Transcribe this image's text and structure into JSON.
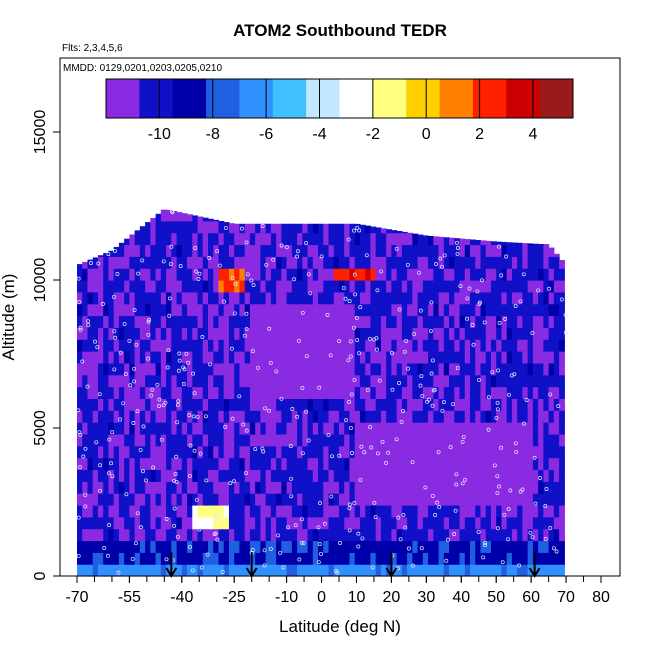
{
  "chart_data": {
    "type": "heatmap",
    "title": "ATOM2 Southbound TEDR",
    "note_flights": "Flts: 2,3,4,5,6",
    "note_dates": "MMDD: 0129,0201,0203,0205,0210",
    "xlabel": "Latitude (deg N)",
    "ylabel": "Altitude (m)",
    "xlim": [
      -70,
      80
    ],
    "ylim": [
      0,
      17500
    ],
    "x_ticks": [
      -70,
      -55,
      -40,
      -25,
      -10,
      0,
      10,
      20,
      30,
      40,
      50,
      60,
      70,
      80
    ],
    "x_tick_labels": [
      "-70",
      "-55",
      "-40",
      "-25",
      "-10",
      "0",
      "10",
      "20",
      "30",
      "40",
      "50",
      "60",
      "70",
      "80"
    ],
    "y_ticks": [
      0,
      5000,
      10000,
      15000
    ],
    "y_tick_labels": [
      "0",
      "5000",
      "10000",
      "15000"
    ],
    "colorbar": {
      "range": [
        -12,
        5.5
      ],
      "ticks": [
        -10,
        -8,
        -6,
        -4,
        -2,
        0,
        2,
        4
      ],
      "tick_labels": [
        "-10",
        "-8",
        "-6",
        "-4",
        "-2",
        "0",
        "2",
        "4"
      ],
      "colors": [
        "#8a2be2",
        "#1010c8",
        "#0000aa",
        "#2060e0",
        "#3090ff",
        "#40c0ff",
        "#c0e8ff",
        "#ffffff",
        "#ffff80",
        "#ffd000",
        "#ff8000",
        "#ff2000",
        "#cc0000",
        "#9a1a1a"
      ]
    },
    "background_value": -10.5,
    "features": [
      {
        "name": "low-altitude band",
        "lat_range": [
          -70,
          70
        ],
        "alt_range": [
          0,
          600
        ],
        "value": -6.5
      },
      {
        "name": "boundary layer",
        "lat_range": [
          -70,
          70
        ],
        "alt_range": [
          600,
          1100
        ],
        "value": -8.5
      },
      {
        "name": "southern turbulent patch",
        "lat_range": [
          -37,
          -27
        ],
        "alt_range": [
          1500,
          2400
        ],
        "value": -2
      },
      {
        "name": "upper patch south",
        "lat_range": [
          -30,
          -22
        ],
        "alt_range": [
          9800,
          10200
        ],
        "value": 2
      },
      {
        "name": "upper patch north",
        "lat_range": [
          3,
          15
        ],
        "alt_range": [
          10000,
          10500
        ],
        "value": 2.5
      },
      {
        "name": "mid-level band",
        "lat_range": [
          -20,
          10
        ],
        "alt_range": [
          6000,
          9000
        ],
        "value": -11.5
      },
      {
        "name": "northern mid band",
        "lat_range": [
          10,
          60
        ],
        "alt_range": [
          2500,
          5000
        ],
        "value": -11.5
      }
    ],
    "flight_ceiling": [
      {
        "lat": -70,
        "alt": 10500
      },
      {
        "lat": -60,
        "alt": 11000
      },
      {
        "lat": -45,
        "alt": 12400
      },
      {
        "lat": -25,
        "alt": 11900
      },
      {
        "lat": -10,
        "alt": 11900
      },
      {
        "lat": 10,
        "alt": 11900
      },
      {
        "lat": 30,
        "alt": 11500
      },
      {
        "lat": 50,
        "alt": 11300
      },
      {
        "lat": 65,
        "alt": 11200
      },
      {
        "lat": 70,
        "alt": 10500
      }
    ],
    "profile_arrows_lat": [
      -43,
      -20,
      20,
      61
    ],
    "legend": "colorbar top"
  }
}
